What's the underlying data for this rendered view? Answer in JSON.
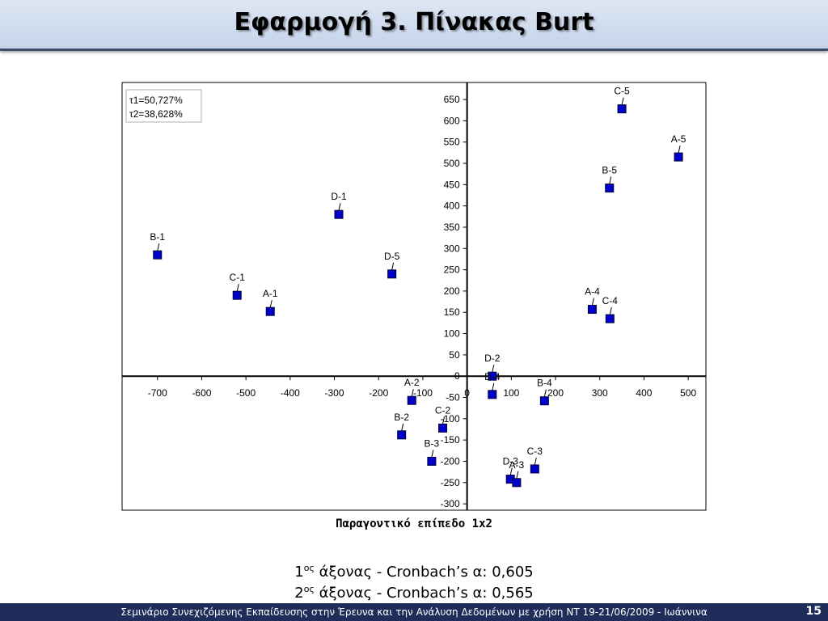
{
  "slide": {
    "title": "Εφαρμογή 3. Πίνακας Burt",
    "stats": [
      {
        "number": "1",
        "suffix": "ος",
        "text": " άξονας - Cronbach’s α: 0,605"
      },
      {
        "number": "2",
        "suffix": "ος",
        "text": " άξονας - Cronbach’s α: 0,565"
      }
    ],
    "footer_text": "Σεμινάριο Συνεχιζόμενης Εκπαίδευσης στην Έρευνα και την Ανάλυση Δεδομένων με χρήση ΝΤ  19-21/06/2009 - Ιωάννινα",
    "page_number": "15"
  },
  "chart_data": {
    "type": "scatter",
    "title": "Παραγοντικό επίπεδο 1x2",
    "legend_box": [
      "τ1=50,727%",
      "τ2=38,628%"
    ],
    "legend_placement": "top-left",
    "xlim": [
      -780,
      540
    ],
    "ylim": [
      -315,
      690
    ],
    "x_ticks": [
      -700,
      -600,
      -500,
      -400,
      -300,
      -200,
      -100,
      0,
      100,
      200,
      300,
      400,
      500
    ],
    "y_ticks": [
      650,
      600,
      550,
      500,
      450,
      400,
      350,
      300,
      250,
      200,
      150,
      100,
      50,
      0,
      -50,
      -100,
      -150,
      -200,
      -250,
      -300
    ],
    "grid": false,
    "marker_color": "#0000cc",
    "points": [
      {
        "label": "C-5",
        "x": 350,
        "y": 628
      },
      {
        "label": "A-5",
        "x": 478,
        "y": 515
      },
      {
        "label": "B-5",
        "x": 322,
        "y": 442
      },
      {
        "label": "D-1",
        "x": -290,
        "y": 380
      },
      {
        "label": "B-1",
        "x": -700,
        "y": 285
      },
      {
        "label": "D-5",
        "x": -170,
        "y": 240
      },
      {
        "label": "C-1",
        "x": -520,
        "y": 190
      },
      {
        "label": "A-1",
        "x": -445,
        "y": 152
      },
      {
        "label": "A-4",
        "x": 283,
        "y": 157
      },
      {
        "label": "C-4",
        "x": 323,
        "y": 135
      },
      {
        "label": "D-2",
        "x": 57,
        "y": 0
      },
      {
        "label": "D-4",
        "x": 57,
        "y": -43
      },
      {
        "label": "A-2",
        "x": -125,
        "y": -57
      },
      {
        "label": "B-4",
        "x": 175,
        "y": -58
      },
      {
        "label": "C-2",
        "x": -55,
        "y": -122
      },
      {
        "label": "B-2",
        "x": -148,
        "y": -138
      },
      {
        "label": "B-3",
        "x": -80,
        "y": -200
      },
      {
        "label": "C-3",
        "x": 153,
        "y": -218
      },
      {
        "label": "D-3",
        "x": 98,
        "y": -242
      },
      {
        "label": "A-3",
        "x": 112,
        "y": -250
      }
    ]
  }
}
